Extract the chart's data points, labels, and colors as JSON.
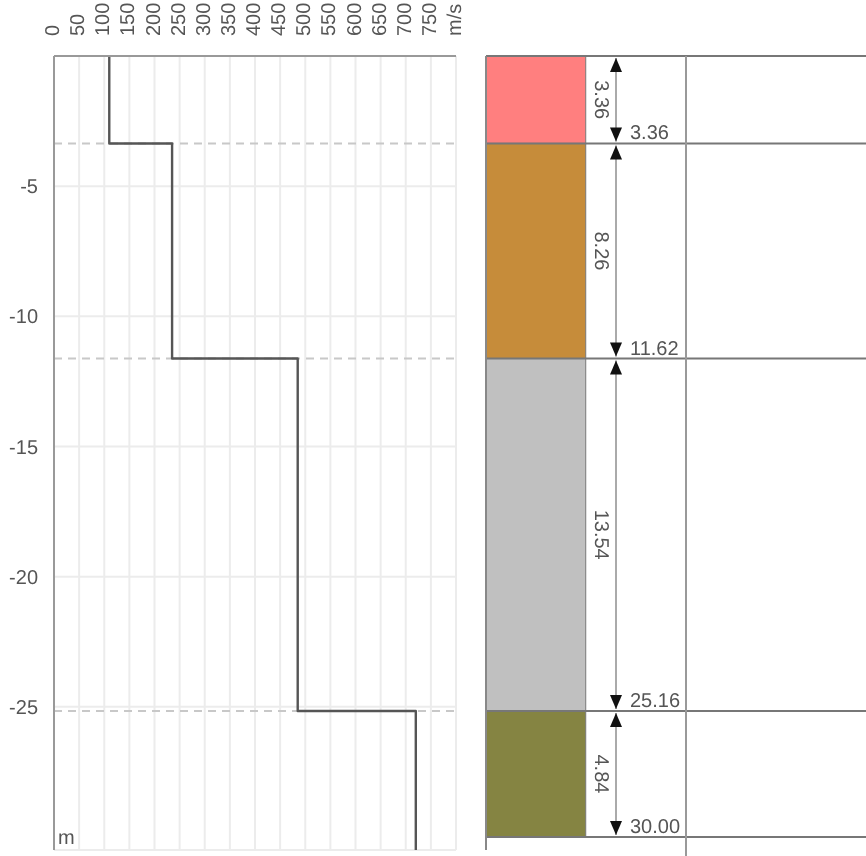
{
  "chart_data": [
    {
      "type": "line",
      "x": [
        110,
        110,
        235,
        235,
        485,
        485,
        720,
        720
      ],
      "series": [
        {
          "color": "#555555",
          "values": [
            0,
            -3.36,
            -3.36,
            -11.62,
            -11.62,
            -25.16,
            -25.16,
            -30.5
          ]
        }
      ],
      "xlim": [
        0,
        800
      ],
      "xticks": [
        0,
        50,
        100,
        150,
        200,
        250,
        300,
        350,
        400,
        450,
        500,
        550,
        600,
        650,
        700,
        750,
        {
          "value": 800,
          "label": "m/s"
        }
      ],
      "ylim": [
        -30.5,
        0
      ],
      "yticks": [
        -5,
        -10,
        -15,
        -20,
        -25
      ],
      "ylabel": "m",
      "grid": true,
      "marker": "none",
      "line_style": "solid",
      "ref_lines": [
        {
          "axis": "y",
          "value": -3.36,
          "color": "#c8c8c8",
          "line_style": "dashed"
        },
        {
          "axis": "y",
          "value": -11.62,
          "color": "#c8c8c8",
          "line_style": "dashed"
        },
        {
          "axis": "y",
          "value": -25.16,
          "color": "#c8c8c8",
          "line_style": "dashed"
        }
      ]
    },
    {
      "type": "bar",
      "stacked": true,
      "categories": [
        null
      ],
      "series": [
        {
          "color": "#ff7f7f",
          "values": [
            3.36
          ]
        },
        {
          "color": "#c68c3a",
          "values": [
            8.26
          ]
        },
        {
          "color": "#c0c0c0",
          "values": [
            13.54
          ]
        },
        {
          "color": "#858442",
          "values": [
            4.84
          ]
        }
      ],
      "ylim": [
        30.5,
        0
      ],
      "tick_labels": false,
      "data_labels": true,
      "ref_lines": [
        {
          "axis": "y",
          "value": 0,
          "color": "#777777"
        },
        {
          "axis": "y",
          "value": 3.36,
          "label": "3.36",
          "color": "#777777"
        },
        {
          "axis": "y",
          "value": 11.62,
          "label": "11.62",
          "color": "#777777"
        },
        {
          "axis": "y",
          "value": 25.16,
          "label": "25.16",
          "color": "#777777"
        },
        {
          "axis": "y",
          "value": 30.0,
          "label": "30.00",
          "color": "#777777"
        }
      ]
    }
  ]
}
